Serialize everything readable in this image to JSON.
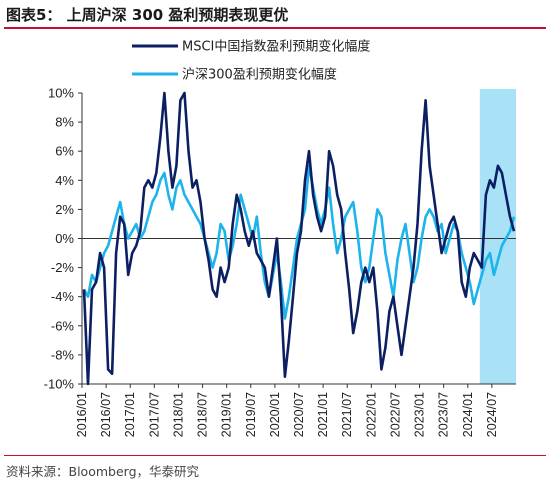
{
  "header": {
    "title": "图表5： 上周沪深 300 盈利预期表现更优"
  },
  "footer": {
    "source": "资料来源：Bloomberg，华泰研究"
  },
  "colors": {
    "accent_rule": "#c8102e",
    "msci_series": "#0d1f63",
    "hs300_series": "#1cb4ea",
    "highlight_band": "#a9e2f7"
  },
  "chart_data": {
    "type": "line",
    "title": "",
    "xlabel": "",
    "ylabel": "",
    "ylim": [
      -10,
      10
    ],
    "ytick_values": [
      10,
      8,
      6,
      4,
      2,
      0,
      -2,
      -4,
      -6,
      -8,
      -10
    ],
    "ytick_labels": [
      "10%",
      "8%",
      "6%",
      "4%",
      "2%",
      "0%",
      "-2%",
      "-4%",
      "-6%",
      "-8%",
      "-10%"
    ],
    "x_range": [
      "2016-01",
      "2024-12"
    ],
    "xtick_labels": [
      "2016/01",
      "2016/07",
      "2017/01",
      "2017/07",
      "2018/01",
      "2018/07",
      "2019/01",
      "2019/07",
      "2020/01",
      "2020/07",
      "2021/01",
      "2021/07",
      "2022/01",
      "2022/07",
      "2023/01",
      "2023/07",
      "2024/01",
      "2024/07"
    ],
    "highlight_period": [
      "2024-04",
      "2024-12"
    ],
    "grid": false,
    "legend_position": "top",
    "series": [
      {
        "name": "MSCI中国指数盈利预期变化幅度",
        "points": [
          [
            "2016-01",
            -3.5
          ],
          [
            "2016-02",
            -10
          ],
          [
            "2016-03",
            -3.5
          ],
          [
            "2016-04",
            -3
          ],
          [
            "2016-05",
            -1
          ],
          [
            "2016-06",
            -2
          ],
          [
            "2016-07",
            -9
          ],
          [
            "2016-08",
            -9.3
          ],
          [
            "2016-09",
            -1
          ],
          [
            "2016-10",
            1.5
          ],
          [
            "2016-11",
            1
          ],
          [
            "2016-12",
            -2.5
          ],
          [
            "2017-01",
            -1
          ],
          [
            "2017-02",
            -0.5
          ],
          [
            "2017-03",
            0.5
          ],
          [
            "2017-04",
            3.5
          ],
          [
            "2017-05",
            4
          ],
          [
            "2017-06",
            3.5
          ],
          [
            "2017-07",
            4.5
          ],
          [
            "2017-08",
            7
          ],
          [
            "2017-09",
            10
          ],
          [
            "2017-10",
            6
          ],
          [
            "2017-11",
            3.5
          ],
          [
            "2017-12",
            5
          ],
          [
            "2018-01",
            9.5
          ],
          [
            "2018-02",
            10
          ],
          [
            "2018-03",
            6
          ],
          [
            "2018-04",
            3.5
          ],
          [
            "2018-05",
            4
          ],
          [
            "2018-06",
            2.5
          ],
          [
            "2018-07",
            0
          ],
          [
            "2018-08",
            -1.5
          ],
          [
            "2018-09",
            -3.5
          ],
          [
            "2018-10",
            -4
          ],
          [
            "2018-11",
            -2
          ],
          [
            "2018-12",
            -3
          ],
          [
            "2019-01",
            -2
          ],
          [
            "2019-02",
            1
          ],
          [
            "2019-03",
            3
          ],
          [
            "2019-04",
            2
          ],
          [
            "2019-05",
            0.5
          ],
          [
            "2019-06",
            -0.5
          ],
          [
            "2019-07",
            0.5
          ],
          [
            "2019-08",
            -1
          ],
          [
            "2019-09",
            -1.5
          ],
          [
            "2019-10",
            -2
          ],
          [
            "2019-11",
            -4
          ],
          [
            "2019-12",
            -2
          ],
          [
            "2020-01",
            0
          ],
          [
            "2020-02",
            -4
          ],
          [
            "2020-03",
            -9.5
          ],
          [
            "2020-04",
            -7
          ],
          [
            "2020-05",
            -4
          ],
          [
            "2020-06",
            -1
          ],
          [
            "2020-07",
            0.5
          ],
          [
            "2020-08",
            4
          ],
          [
            "2020-09",
            6
          ],
          [
            "2020-10",
            3
          ],
          [
            "2020-11",
            1.5
          ],
          [
            "2020-12",
            0.5
          ],
          [
            "2021-01",
            1.5
          ],
          [
            "2021-02",
            6
          ],
          [
            "2021-03",
            5
          ],
          [
            "2021-04",
            3
          ],
          [
            "2021-05",
            2
          ],
          [
            "2021-06",
            -1
          ],
          [
            "2021-07",
            -3.5
          ],
          [
            "2021-08",
            -6.5
          ],
          [
            "2021-09",
            -5
          ],
          [
            "2021-10",
            -3
          ],
          [
            "2021-11",
            -2
          ],
          [
            "2021-12",
            -3
          ],
          [
            "2022-01",
            -2
          ],
          [
            "2022-02",
            -5
          ],
          [
            "2022-03",
            -9
          ],
          [
            "2022-04",
            -7.5
          ],
          [
            "2022-05",
            -5
          ],
          [
            "2022-06",
            -4
          ],
          [
            "2022-07",
            -6
          ],
          [
            "2022-08",
            -8
          ],
          [
            "2022-09",
            -6
          ],
          [
            "2022-10",
            -4
          ],
          [
            "2022-11",
            -2
          ],
          [
            "2022-12",
            1
          ],
          [
            "2023-01",
            6
          ],
          [
            "2023-02",
            9.5
          ],
          [
            "2023-03",
            5
          ],
          [
            "2023-04",
            3
          ],
          [
            "2023-05",
            1
          ],
          [
            "2023-06",
            -1
          ],
          [
            "2023-07",
            0
          ],
          [
            "2023-08",
            1
          ],
          [
            "2023-09",
            1.5
          ],
          [
            "2023-10",
            0.5
          ],
          [
            "2023-11",
            -3
          ],
          [
            "2023-12",
            -4
          ],
          [
            "2024-01",
            -2
          ],
          [
            "2024-02",
            -1
          ],
          [
            "2024-03",
            -1.5
          ],
          [
            "2024-04",
            -2
          ],
          [
            "2024-05",
            3
          ],
          [
            "2024-06",
            4
          ],
          [
            "2024-07",
            3.5
          ],
          [
            "2024-08",
            5
          ],
          [
            "2024-09",
            4.5
          ],
          [
            "2024-10",
            3
          ],
          [
            "2024-11",
            1.5
          ],
          [
            "2024-12",
            0.5
          ]
        ]
      },
      {
        "name": "沪深300盈利预期变化幅度",
        "points": [
          [
            "2016-01",
            -3.5
          ],
          [
            "2016-02",
            -4
          ],
          [
            "2016-03",
            -2.5
          ],
          [
            "2016-04",
            -3
          ],
          [
            "2016-05",
            -2
          ],
          [
            "2016-06",
            -1
          ],
          [
            "2016-07",
            -0.5
          ],
          [
            "2016-08",
            0.5
          ],
          [
            "2016-09",
            1.5
          ],
          [
            "2016-10",
            2.5
          ],
          [
            "2016-11",
            1
          ],
          [
            "2016-12",
            0
          ],
          [
            "2017-01",
            0.5
          ],
          [
            "2017-02",
            1
          ],
          [
            "2017-03",
            0
          ],
          [
            "2017-04",
            0.5
          ],
          [
            "2017-05",
            1.5
          ],
          [
            "2017-06",
            2.5
          ],
          [
            "2017-07",
            3
          ],
          [
            "2017-08",
            4
          ],
          [
            "2017-09",
            4.5
          ],
          [
            "2017-10",
            3
          ],
          [
            "2017-11",
            2
          ],
          [
            "2017-12",
            3.5
          ],
          [
            "2018-01",
            4
          ],
          [
            "2018-02",
            3
          ],
          [
            "2018-03",
            2.5
          ],
          [
            "2018-04",
            2
          ],
          [
            "2018-05",
            1.5
          ],
          [
            "2018-06",
            1
          ],
          [
            "2018-07",
            0
          ],
          [
            "2018-08",
            -1
          ],
          [
            "2018-09",
            -2
          ],
          [
            "2018-10",
            -1
          ],
          [
            "2018-11",
            1
          ],
          [
            "2018-12",
            0.5
          ],
          [
            "2019-01",
            -1.5
          ],
          [
            "2019-02",
            -0.5
          ],
          [
            "2019-03",
            1
          ],
          [
            "2019-04",
            3
          ],
          [
            "2019-05",
            2
          ],
          [
            "2019-06",
            1
          ],
          [
            "2019-07",
            0
          ],
          [
            "2019-08",
            1.5
          ],
          [
            "2019-09",
            -1
          ],
          [
            "2019-10",
            -3
          ],
          [
            "2019-11",
            -4
          ],
          [
            "2019-12",
            -2.5
          ],
          [
            "2020-01",
            -1
          ],
          [
            "2020-02",
            -3
          ],
          [
            "2020-03",
            -5.5
          ],
          [
            "2020-04",
            -4
          ],
          [
            "2020-05",
            -2
          ],
          [
            "2020-06",
            0
          ],
          [
            "2020-07",
            1
          ],
          [
            "2020-08",
            2
          ],
          [
            "2020-09",
            5
          ],
          [
            "2020-10",
            3.5
          ],
          [
            "2020-11",
            2
          ],
          [
            "2020-12",
            1
          ],
          [
            "2021-01",
            2
          ],
          [
            "2021-02",
            3.5
          ],
          [
            "2021-03",
            1
          ],
          [
            "2021-04",
            -1
          ],
          [
            "2021-05",
            0
          ],
          [
            "2021-06",
            1.5
          ],
          [
            "2021-07",
            2
          ],
          [
            "2021-08",
            2.5
          ],
          [
            "2021-09",
            0.5
          ],
          [
            "2021-10",
            -2
          ],
          [
            "2021-11",
            -3
          ],
          [
            "2021-12",
            -2
          ],
          [
            "2022-01",
            0
          ],
          [
            "2022-02",
            2
          ],
          [
            "2022-03",
            1.5
          ],
          [
            "2022-04",
            -1
          ],
          [
            "2022-05",
            -2.5
          ],
          [
            "2022-06",
            -4
          ],
          [
            "2022-07",
            -1.5
          ],
          [
            "2022-08",
            0
          ],
          [
            "2022-09",
            1
          ],
          [
            "2022-10",
            -1
          ],
          [
            "2022-11",
            -3
          ],
          [
            "2022-12",
            -2
          ],
          [
            "2023-01",
            0
          ],
          [
            "2023-02",
            1.5
          ],
          [
            "2023-03",
            2
          ],
          [
            "2023-04",
            1.5
          ],
          [
            "2023-05",
            0.5
          ],
          [
            "2023-06",
            1
          ],
          [
            "2023-07",
            -1
          ],
          [
            "2023-08",
            0
          ],
          [
            "2023-09",
            1
          ],
          [
            "2023-10",
            0.5
          ],
          [
            "2023-11",
            -1
          ],
          [
            "2023-12",
            -2
          ],
          [
            "2024-01",
            -3
          ],
          [
            "2024-02",
            -4.5
          ],
          [
            "2024-03",
            -3.5
          ],
          [
            "2024-04",
            -2.5
          ],
          [
            "2024-05",
            -1.5
          ],
          [
            "2024-06",
            -1
          ],
          [
            "2024-07",
            -2.5
          ],
          [
            "2024-08",
            -1.5
          ],
          [
            "2024-09",
            -0.5
          ],
          [
            "2024-10",
            0
          ],
          [
            "2024-11",
            0.5
          ],
          [
            "2024-12",
            1.5
          ]
        ]
      }
    ]
  }
}
